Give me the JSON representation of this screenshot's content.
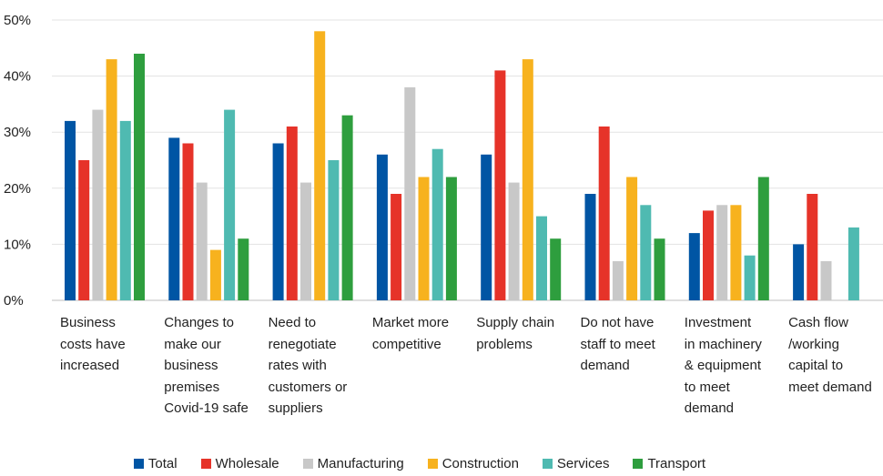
{
  "chart_data": {
    "type": "bar",
    "categories": [
      "Business\ncosts have\nincreased",
      "Changes to\nmake our\nbusiness\npremises\nCovid-19 safe",
      "Need to\nrenegotiate\nrates with\ncustomers or\nsuppliers",
      "Market more\ncompetitive",
      "Supply chain\nproblems",
      "Do not have\nstaff to meet\ndemand",
      "Investment\nin machinery\n& equipment\nto meet\ndemand",
      "Cash flow\n/working\ncapital to\nmeet demand"
    ],
    "series": [
      {
        "name": "Total",
        "color": "#0055a4",
        "values": [
          32,
          29,
          28,
          26,
          26,
          19,
          12,
          10
        ]
      },
      {
        "name": "Wholesale",
        "color": "#e63329",
        "values": [
          25,
          28,
          31,
          19,
          41,
          31,
          16,
          19
        ]
      },
      {
        "name": "Manufacturing",
        "color": "#c8c8c8",
        "values": [
          34,
          21,
          21,
          38,
          21,
          7,
          17,
          7
        ]
      },
      {
        "name": "Construction",
        "color": "#f7b21e",
        "values": [
          43,
          9,
          48,
          22,
          43,
          22,
          17,
          0
        ]
      },
      {
        "name": "Services",
        "color": "#4fbab1",
        "values": [
          32,
          34,
          25,
          27,
          15,
          17,
          8,
          13
        ]
      },
      {
        "name": "Transport",
        "color": "#2e9e3e",
        "values": [
          44,
          11,
          33,
          22,
          11,
          11,
          22,
          0
        ]
      }
    ],
    "yticks": [
      "0%",
      "10%",
      "20%",
      "30%",
      "40%",
      "50%"
    ],
    "ylim": [
      0,
      50
    ],
    "grid": true,
    "legend_position": "bottom"
  }
}
